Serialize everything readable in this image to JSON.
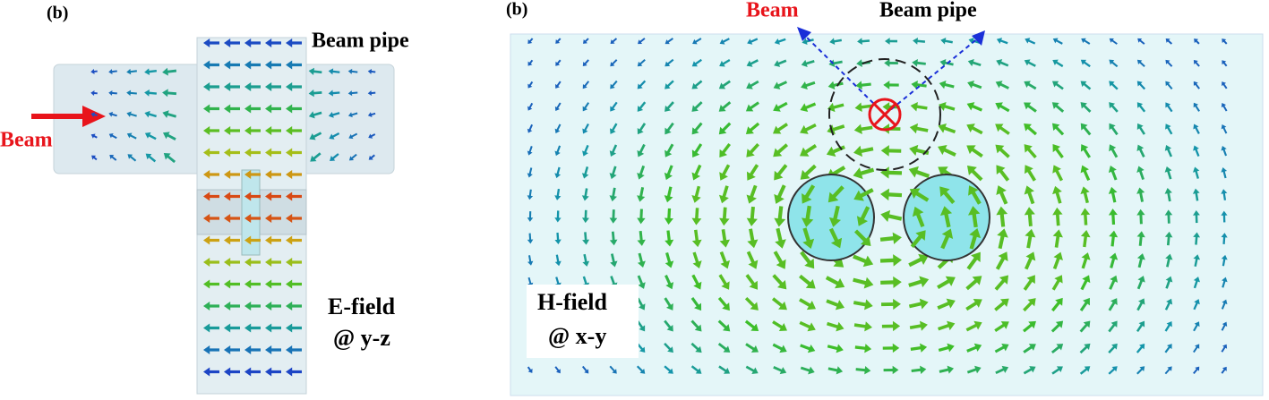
{
  "panels": [
    {
      "label": "(b)",
      "beam_pipe": "Beam pipe",
      "beam": "Beam",
      "field": "E-field",
      "plane": "@ y-z"
    },
    {
      "label": "(b)",
      "beam_pipe": "Beam pipe",
      "beam": "Beam",
      "field": "H-field",
      "plane": "@ x-y"
    }
  ]
}
